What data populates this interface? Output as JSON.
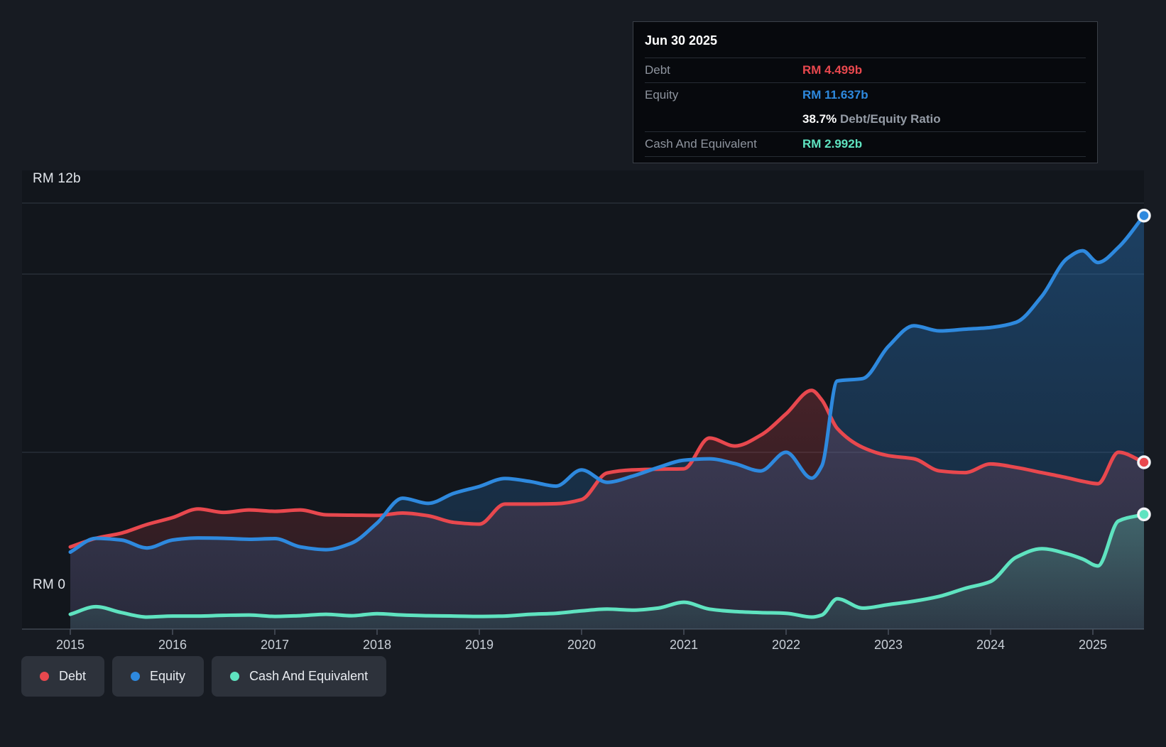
{
  "tooltip": {
    "date": "Jun 30 2025",
    "debt": {
      "label": "Debt",
      "value": "RM 4.499b"
    },
    "equity": {
      "label": "Equity",
      "value": "RM 11.637b"
    },
    "ratio": {
      "value": "38.7%",
      "label": "Debt/Equity Ratio"
    },
    "cash": {
      "label": "Cash And Equivalent",
      "value": "RM 2.992b"
    }
  },
  "y_axis": {
    "top_label": "RM 12b",
    "bottom_label": "RM 0"
  },
  "x_axis": {
    "years": [
      "2015",
      "2016",
      "2017",
      "2018",
      "2019",
      "2020",
      "2021",
      "2022",
      "2023",
      "2024",
      "2025"
    ]
  },
  "legend": {
    "items": [
      {
        "label": "Debt",
        "color": "#e8484e"
      },
      {
        "label": "Equity",
        "color": "#2e89de"
      },
      {
        "label": "Cash And Equivalent",
        "color": "#5fe3c0"
      }
    ]
  },
  "chart_data": {
    "type": "area",
    "title": "",
    "unit": "RM billions",
    "x_label": "Year",
    "y_range": [
      0,
      12
    ],
    "x_range": [
      2015,
      2025.5
    ],
    "grid": "horizontal",
    "legend_position": "bottom-left",
    "x_ticks": [
      2015,
      2016,
      2017,
      2018,
      2019,
      2020,
      2021,
      2022,
      2023,
      2024,
      2025
    ],
    "x": [
      2015,
      2015.25,
      2015.5,
      2015.75,
      2016,
      2016.25,
      2016.5,
      2016.75,
      2017,
      2017.25,
      2017.5,
      2017.75,
      2018,
      2018.25,
      2018.5,
      2018.75,
      2019,
      2019.25,
      2019.5,
      2019.75,
      2020,
      2020.25,
      2020.5,
      2020.75,
      2021,
      2021.25,
      2021.5,
      2021.75,
      2022,
      2022.25,
      2022.35,
      2022.5,
      2022.75,
      2023,
      2023.25,
      2023.5,
      2023.75,
      2024,
      2024.25,
      2024.5,
      2024.75,
      2024.9,
      2025.05,
      2025.25,
      2025.5
    ],
    "series": [
      {
        "name": "Debt",
        "color": "#e8484e",
        "fill_opacity_top": 0.24,
        "fill_opacity_bottom": 0.1,
        "values": [
          2.05,
          2.3,
          2.45,
          2.7,
          2.9,
          3.15,
          3.05,
          3.12,
          3.08,
          3.12,
          2.98,
          2.97,
          2.96,
          3.03,
          2.95,
          2.76,
          2.71,
          3.29,
          3.29,
          3.3,
          3.42,
          4.19,
          4.28,
          4.3,
          4.31,
          5.2,
          4.97,
          5.28,
          5.9,
          6.58,
          6.3,
          5.48,
          4.93,
          4.69,
          4.6,
          4.25,
          4.2,
          4.45,
          4.35,
          4.2,
          4.05,
          3.95,
          3.88,
          4.79,
          4.499
        ]
      },
      {
        "name": "Equity",
        "color": "#2e89de",
        "fill_opacity_top": 0.36,
        "fill_opacity_bottom": 0.14,
        "values": [
          1.9,
          2.3,
          2.25,
          2.02,
          2.25,
          2.31,
          2.3,
          2.27,
          2.29,
          2.05,
          1.97,
          2.16,
          2.74,
          3.46,
          3.31,
          3.6,
          3.8,
          4.03,
          3.94,
          3.81,
          4.28,
          3.92,
          4.1,
          4.35,
          4.56,
          4.6,
          4.46,
          4.25,
          4.79,
          4.04,
          4.4,
          6.85,
          6.92,
          7.85,
          8.45,
          8.3,
          8.35,
          8.4,
          8.55,
          9.3,
          10.4,
          10.62,
          10.28,
          10.72,
          11.637
        ]
      },
      {
        "name": "Cash And Equivalent",
        "color": "#5fe3c0",
        "fill_opacity_top": 0.28,
        "fill_opacity_bottom": 0.08,
        "values": [
          0.1,
          0.32,
          0.15,
          0.02,
          0.05,
          0.05,
          0.07,
          0.08,
          0.04,
          0.06,
          0.1,
          0.06,
          0.12,
          0.08,
          0.06,
          0.05,
          0.04,
          0.05,
          0.1,
          0.13,
          0.2,
          0.25,
          0.22,
          0.28,
          0.45,
          0.25,
          0.18,
          0.15,
          0.13,
          0.02,
          0.08,
          0.55,
          0.28,
          0.38,
          0.48,
          0.62,
          0.85,
          1.05,
          1.75,
          2.0,
          1.85,
          1.7,
          1.5,
          2.8,
          2.992
        ]
      }
    ]
  }
}
